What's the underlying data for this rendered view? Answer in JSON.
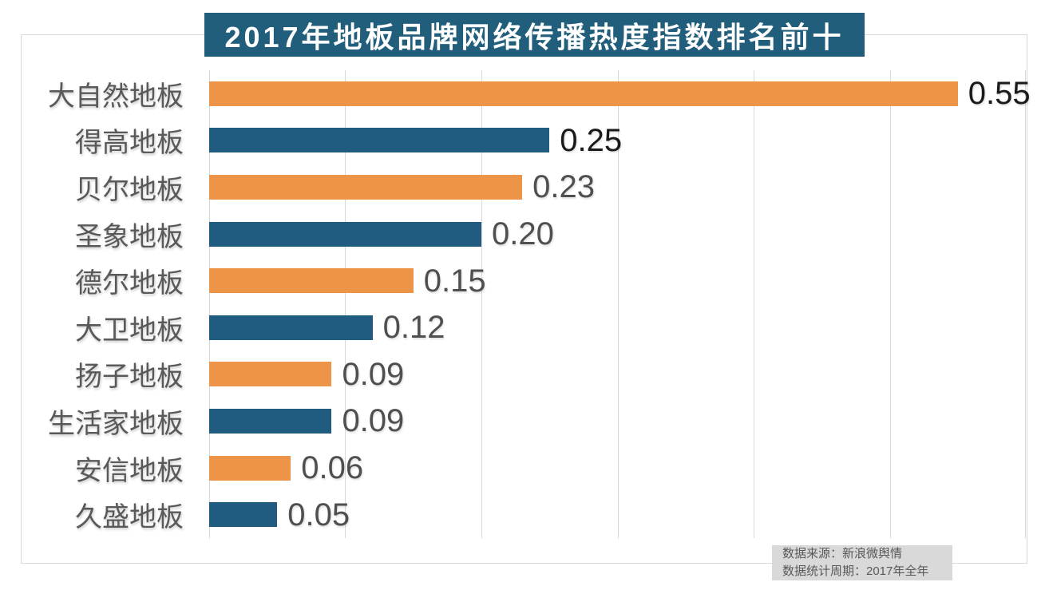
{
  "title": {
    "text": "2017年地板品牌网络传播热度指数排名前十"
  },
  "source": {
    "line1": "数据来源：新浪微舆情",
    "line2": "数据统计周期：2017年全年"
  },
  "colors": {
    "orange": "#EE9449",
    "blue": "#1F5C7F",
    "banner_bg": "#215E7C",
    "banner_text": "#FFFFFF",
    "grid": "#D9D9D9",
    "frame_border": "#D9D9D9",
    "category_label": "#595959",
    "value_emphasis": "#1A1A1A",
    "value_normal": "#4F4F4F",
    "source_bg": "#D9D9D9",
    "source_text": "#595959"
  },
  "chart_data": {
    "type": "bar",
    "orientation": "horizontal",
    "title": "2017年地板品牌网络传播热度指数排名前十",
    "categories": [
      "大自然地板",
      "得高地板",
      "贝尔地板",
      "圣象地板",
      "德尔地板",
      "大卫地板",
      "扬子地板",
      "生活家地板",
      "安信地板",
      "久盛地板"
    ],
    "values": [
      0.55,
      0.25,
      0.23,
      0.2,
      0.15,
      0.12,
      0.09,
      0.09,
      0.06,
      0.05
    ],
    "value_labels": [
      "0.55",
      "0.25",
      "0.23",
      "0.20",
      "0.15",
      "0.12",
      "0.09",
      "0.09",
      "0.06",
      "0.05"
    ],
    "bar_colors": [
      "#EE9449",
      "#1F5C7F",
      "#EE9449",
      "#1F5C7F",
      "#EE9449",
      "#1F5C7F",
      "#EE9449",
      "#1F5C7F",
      "#EE9449",
      "#1F5C7F"
    ],
    "value_label_colors": [
      "#1A1A1A",
      "#1A1A1A",
      "#4F4F4F",
      "#4F4F4F",
      "#4F4F4F",
      "#4F4F4F",
      "#4F4F4F",
      "#4F4F4F",
      "#4F4F4F",
      "#4F4F4F"
    ],
    "xlabel": "",
    "ylabel": "",
    "xlim": [
      0,
      0.6
    ],
    "gridline_interval": 0.1,
    "grid": true,
    "legend": false,
    "source_note": "数据来源：新浪微舆情 数据统计周期：2017年全年"
  }
}
